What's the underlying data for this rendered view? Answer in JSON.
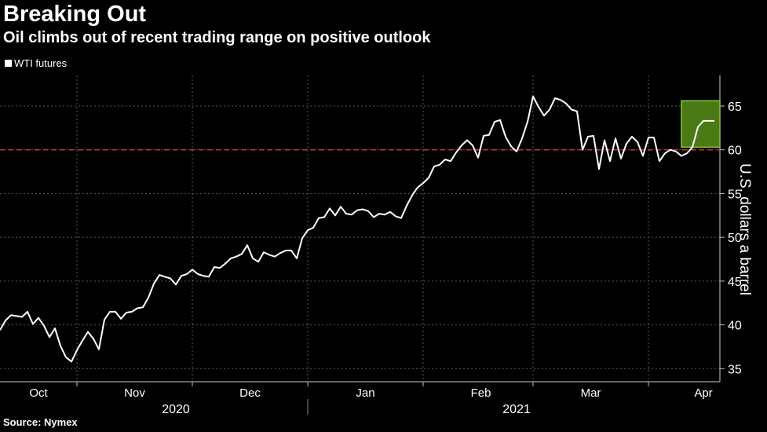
{
  "title": "Breaking Out",
  "subtitle": "Oil climbs out of recent trading range on positive outlook",
  "source": "Source: Nymex",
  "chart_data": {
    "type": "line",
    "title": "Breaking Out",
    "subtitle": "Oil climbs out of recent trading range on positive outlook",
    "ylabel": "U.S. dollars a barrel",
    "xlabel": "",
    "ylim": [
      33.5,
      68.5
    ],
    "yticks": [
      35,
      40,
      45,
      50,
      55,
      60,
      65
    ],
    "xlim": [
      0,
      131
    ],
    "month_labels": [
      {
        "label": "Oct",
        "x": 7
      },
      {
        "label": "Nov",
        "x": 24.5
      },
      {
        "label": "Dec",
        "x": 45.5
      },
      {
        "label": "Jan",
        "x": 66.5
      },
      {
        "label": "Feb",
        "x": 87.5
      },
      {
        "label": "Mar",
        "x": 107.5
      },
      {
        "label": "Apr",
        "x": 128
      }
    ],
    "month_gridlines": [
      14,
      35,
      56,
      77,
      97,
      118
    ],
    "year_labels": [
      {
        "label": "2020",
        "x": 32
      },
      {
        "label": "2021",
        "x": 94
      }
    ],
    "year_divider": 56,
    "reference_line": {
      "value": 60,
      "color": "#c0392b",
      "style": "dashed"
    },
    "highlight": {
      "x0": 124,
      "x1": 131,
      "y0": 60.3,
      "y1": 65.6,
      "fill": "#4a7a14",
      "stroke": "#8ec63f"
    },
    "legend": [
      "WTI futures"
    ],
    "series": [
      {
        "name": "WTI futures",
        "color": "#ffffff",
        "x": [
          0,
          1,
          2,
          3,
          4,
          5,
          6,
          7,
          8,
          9,
          10,
          11,
          12,
          13,
          14,
          15,
          16,
          17,
          18,
          19,
          20,
          21,
          22,
          23,
          24,
          25,
          26,
          27,
          28,
          29,
          30,
          31,
          32,
          33,
          34,
          35,
          36,
          37,
          38,
          39,
          40,
          41,
          42,
          43,
          44,
          45,
          46,
          47,
          48,
          49,
          50,
          51,
          52,
          53,
          54,
          55,
          56,
          57,
          58,
          59,
          60,
          61,
          62,
          63,
          64,
          65,
          66,
          67,
          68,
          69,
          70,
          71,
          72,
          73,
          74,
          75,
          76,
          77,
          78,
          79,
          80,
          81,
          82,
          83,
          84,
          85,
          86,
          87,
          88,
          89,
          90,
          91,
          92,
          93,
          94,
          95,
          96,
          97,
          98,
          99,
          100,
          101,
          102,
          103,
          104,
          105,
          106,
          107,
          108,
          109,
          110,
          111,
          112,
          113,
          114,
          115,
          116,
          117,
          118,
          119,
          120,
          121,
          122,
          123,
          124,
          125,
          126,
          127,
          128,
          129,
          130
        ],
        "values": [
          39.4,
          40.5,
          41.1,
          41.0,
          40.9,
          41.5,
          40.1,
          40.8,
          39.9,
          38.6,
          39.6,
          37.6,
          36.3,
          35.8,
          37.1,
          38.2,
          39.2,
          38.4,
          37.2,
          40.6,
          41.5,
          41.5,
          40.7,
          41.4,
          41.5,
          41.9,
          42.0,
          43.1,
          44.7,
          45.7,
          45.5,
          45.3,
          44.6,
          45.6,
          45.8,
          46.3,
          45.8,
          45.6,
          45.5,
          46.6,
          46.5,
          47.0,
          47.6,
          47.8,
          48.1,
          49.1,
          47.6,
          47.2,
          48.3,
          48.0,
          47.8,
          48.2,
          48.5,
          48.5,
          47.6,
          49.9,
          50.8,
          51.1,
          52.2,
          52.3,
          53.3,
          52.5,
          53.5,
          52.7,
          52.6,
          53.1,
          53.2,
          53.0,
          52.3,
          52.7,
          52.6,
          52.9,
          52.4,
          52.2,
          53.6,
          54.8,
          55.7,
          56.2,
          56.8,
          58.1,
          58.3,
          58.9,
          58.7,
          59.7,
          60.5,
          61.1,
          60.5,
          59.1,
          61.6,
          61.7,
          63.2,
          63.4,
          61.5,
          60.4,
          59.8,
          61.3,
          63.2,
          66.1,
          64.9,
          63.9,
          64.6,
          65.9,
          65.7,
          65.3,
          64.6,
          64.4,
          60.0,
          61.5,
          61.6,
          57.8,
          61.1,
          58.7,
          61.3,
          59.0,
          60.7,
          61.5,
          60.9,
          59.3,
          61.4,
          61.4,
          58.7,
          59.6,
          60.0,
          59.8,
          59.3,
          59.6,
          60.3,
          62.6,
          63.3,
          63.3,
          63.3
        ]
      }
    ]
  }
}
